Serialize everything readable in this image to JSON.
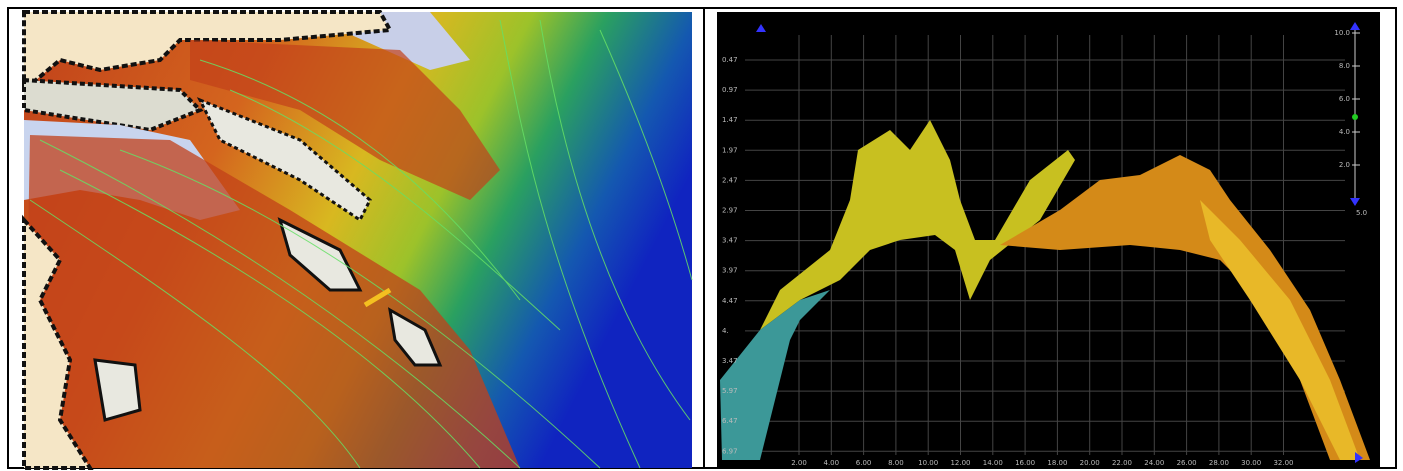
{
  "right_panel": {
    "y_labels": [
      "0.47",
      "0.97",
      "1.47",
      "1.97",
      "2.47",
      "2.97",
      "3.47",
      "3.97",
      "4.47",
      "4.",
      "3.47",
      "5.97",
      "6.47",
      "6.97"
    ],
    "x_labels": [
      "2.00",
      "4.00",
      "6.00",
      "8.00",
      "10.00",
      "12.00",
      "14.00",
      "16.00",
      "18.00",
      "20.00",
      "22.00",
      "24.00",
      "26.00",
      "28.00",
      "30.00",
      "32.00"
    ],
    "scale_labels": [
      "10.0",
      "8.0",
      "6.0",
      "4.0",
      "2.0"
    ],
    "scale_bottom_label": "5.0"
  }
}
